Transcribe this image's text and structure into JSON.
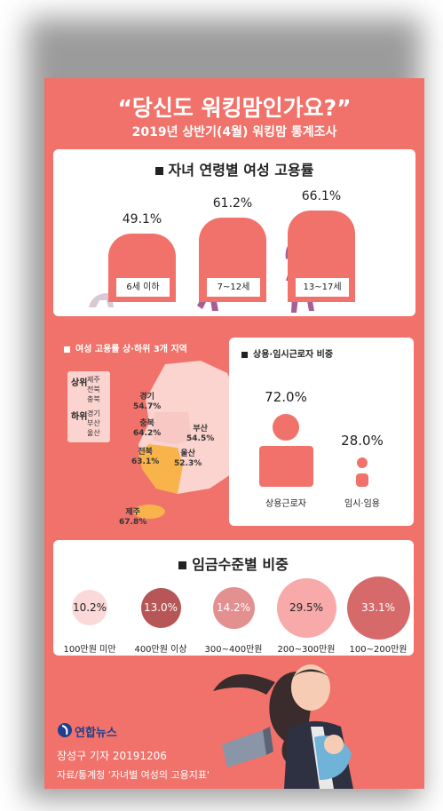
{
  "header": {
    "title_pre": "“당신도 ",
    "title_bold": "워킹맘",
    "title_post": "인가요?”",
    "subtitle": "2019년 상반기(4월) 워킹맘 통계조사"
  },
  "colors": {
    "background": "#f0726a",
    "accent": "#f0726a",
    "highlight": "#f8b34a"
  },
  "chart_data": [
    {
      "type": "bar",
      "title": "자녀 연령별 여성 고용률",
      "categories": [
        "6세 이하",
        "7~12세",
        "13~17세"
      ],
      "values": [
        49.1,
        61.2,
        66.1
      ],
      "value_labels": [
        "49.1%",
        "61.2%",
        "66.1%"
      ],
      "unit": "%"
    },
    {
      "type": "bar",
      "title": "상용·임시근로자 비중",
      "categories": [
        "상용근로자",
        "임시·임용"
      ],
      "values": [
        72.0,
        28.0
      ],
      "value_labels": [
        "72.0%",
        "28.0%"
      ],
      "unit": "%"
    },
    {
      "type": "bubble",
      "title": "임금수준별 비중",
      "categories": [
        "100만원 미만",
        "400만원 이상",
        "300~400만원",
        "200~300만원",
        "100~200만원"
      ],
      "values": [
        10.2,
        13.0,
        14.2,
        29.5,
        33.1
      ],
      "value_labels": [
        "10.2%",
        "13.0%",
        "14.2%",
        "29.5%",
        "33.1%"
      ],
      "colors": [
        "#fbd9d9",
        "#b65656",
        "#e39090",
        "#f8a9a9",
        "#d66a6a"
      ],
      "unit": "%"
    }
  ],
  "map": {
    "title": "여성 고용률 상·하위 3개 지역",
    "legend": {
      "top_label": "상위",
      "top_regions": [
        "제주",
        "전북",
        "충북"
      ],
      "bottom_label": "하위",
      "bottom_regions": [
        "경기",
        "부산",
        "울산"
      ]
    },
    "regions": [
      {
        "name": "경기",
        "value": "54.7%"
      },
      {
        "name": "충북",
        "value": "64.2%"
      },
      {
        "name": "부산",
        "value": "54.5%"
      },
      {
        "name": "울산",
        "value": "52.3%"
      },
      {
        "name": "전북",
        "value": "63.1%"
      },
      {
        "name": "제주",
        "value": "67.8%"
      }
    ]
  },
  "footer": {
    "logo_text": "연합뉴스",
    "byline": "장성구 기자 20191206",
    "source": "자료/통계청 '자녀별 여성의 고용지표'"
  }
}
